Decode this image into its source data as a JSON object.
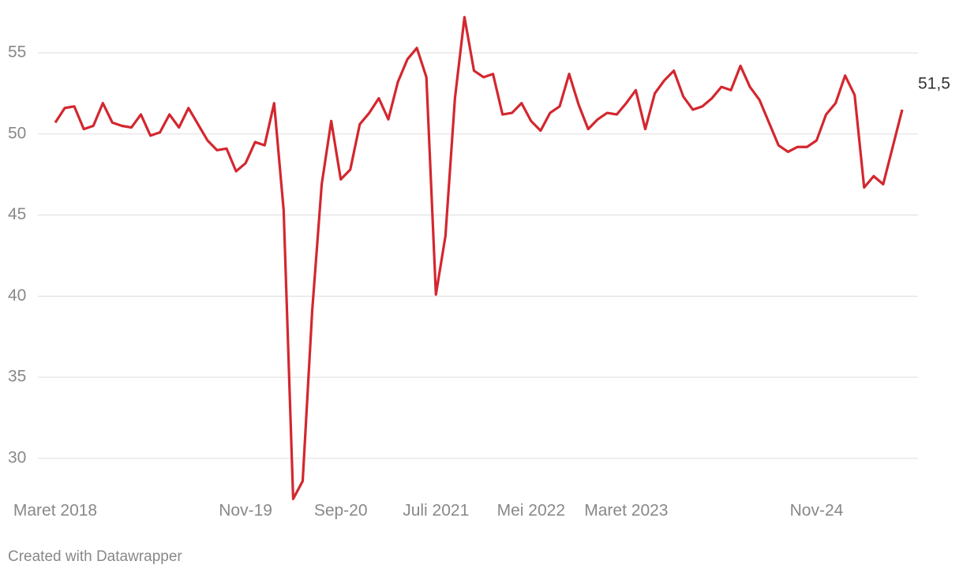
{
  "chart_data": {
    "type": "line",
    "credit": "Created with Datawrapper",
    "categories": [
      "Maret 2018",
      null,
      null,
      null,
      null,
      null,
      null,
      null,
      null,
      null,
      null,
      null,
      null,
      null,
      null,
      null,
      null,
      null,
      null,
      null,
      "Nov-19",
      null,
      null,
      null,
      null,
      null,
      null,
      null,
      null,
      null,
      "Sep-20",
      null,
      null,
      null,
      null,
      null,
      null,
      null,
      null,
      null,
      "Juli 2021",
      null,
      null,
      null,
      null,
      null,
      null,
      null,
      null,
      null,
      "Mei 2022",
      null,
      null,
      null,
      null,
      null,
      null,
      null,
      null,
      null,
      "Maret 2023",
      null,
      null,
      null,
      null,
      null,
      null,
      null,
      null,
      null,
      null,
      null,
      null,
      null,
      null,
      null,
      null,
      null,
      null,
      null,
      "Nov-24",
      null,
      null,
      null,
      null,
      null,
      null,
      null,
      null,
      null
    ],
    "values": [
      50.7,
      51.6,
      51.7,
      50.3,
      50.5,
      51.9,
      50.7,
      50.5,
      50.4,
      51.2,
      49.9,
      50.1,
      51.2,
      50.4,
      51.6,
      50.6,
      49.6,
      49.0,
      49.1,
      47.7,
      48.2,
      49.5,
      49.3,
      51.9,
      45.3,
      27.5,
      28.6,
      39.1,
      46.9,
      50.8,
      47.2,
      47.8,
      50.6,
      51.3,
      52.2,
      50.9,
      53.2,
      54.6,
      55.3,
      53.5,
      40.1,
      43.7,
      52.2,
      57.2,
      53.9,
      53.5,
      53.7,
      51.2,
      51.3,
      51.9,
      50.8,
      50.2,
      51.3,
      51.7,
      53.7,
      51.8,
      50.3,
      50.9,
      51.3,
      51.2,
      51.9,
      52.7,
      50.3,
      52.5,
      53.3,
      53.9,
      52.3,
      51.5,
      51.7,
      52.2,
      52.9,
      52.7,
      54.2,
      52.9,
      52.1,
      50.7,
      49.3,
      48.9,
      49.2,
      49.2,
      49.6,
      51.2,
      51.9,
      53.6,
      52.4,
      46.7,
      47.4,
      46.9,
      49.2,
      51.5
    ],
    "value_labels": [
      null,
      null,
      null,
      null,
      null,
      null,
      null,
      null,
      null,
      null,
      null,
      null,
      null,
      null,
      null,
      null,
      null,
      null,
      null,
      null,
      null,
      null,
      null,
      null,
      null,
      null,
      null,
      null,
      null,
      null,
      null,
      null,
      null,
      null,
      null,
      null,
      null,
      null,
      null,
      null,
      null,
      null,
      null,
      null,
      null,
      null,
      null,
      null,
      null,
      null,
      null,
      null,
      null,
      null,
      null,
      null,
      null,
      null,
      null,
      null,
      null,
      null,
      null,
      null,
      null,
      null,
      null,
      null,
      null,
      null,
      null,
      null,
      null,
      null,
      null,
      null,
      null,
      null,
      null,
      null,
      null,
      null,
      null,
      null,
      null,
      null,
      null,
      null,
      null,
      "51,5"
    ],
    "color": "#d3272f",
    "ylim": [
      27.5,
      57.5
    ],
    "yticks": [
      30,
      35,
      40,
      45,
      50,
      55
    ],
    "grid": true
  }
}
